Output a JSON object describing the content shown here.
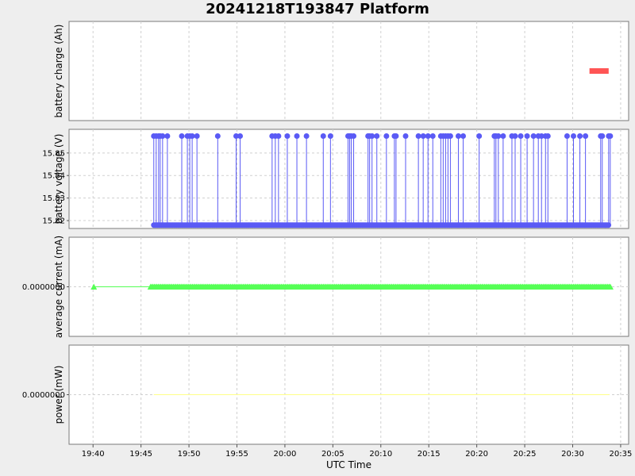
{
  "title": "20241218T193847 Platform",
  "x_axis": {
    "label": "UTC Time",
    "ticks": [
      "19:40",
      "19:45",
      "19:50",
      "19:55",
      "20:00",
      "20:05",
      "20:10",
      "20:15",
      "20:20",
      "20:25",
      "20:30",
      "20:35"
    ],
    "range": [
      "19:37:30",
      "20:35:50"
    ]
  },
  "chart_data": [
    {
      "type": "line",
      "ylabel": "battery charge (Ah)",
      "yticks": [],
      "series": [
        {
          "color": "#ff5555",
          "x": [
            "20:31:45",
            "20:33:45"
          ],
          "y": [
            0.5,
            0.5
          ]
        }
      ],
      "grid": true
    },
    {
      "type": "line",
      "ylabel": "battery voltage (V)",
      "yticks": [
        "15.82",
        "15.83",
        "15.84",
        "15.85"
      ],
      "ylim": [
        15.8165,
        15.8605
      ],
      "low": 15.818,
      "high": 15.8575,
      "x_start": "19:46:20",
      "x_end": "20:33:50",
      "spike_times": [
        "19:46:20",
        "19:46:35",
        "19:46:50",
        "19:47:00",
        "19:47:15",
        "19:47:45",
        "19:49:15",
        "19:49:50",
        "19:50:05",
        "19:50:20",
        "19:50:50",
        "19:53:00",
        "19:54:55",
        "19:55:20",
        "19:58:40",
        "19:59:00",
        "19:59:20",
        "20:00:15",
        "20:01:15",
        "20:02:15",
        "20:04:00",
        "20:04:45",
        "20:06:35",
        "20:06:45",
        "20:06:55",
        "20:07:10",
        "20:08:40",
        "20:08:50",
        "20:09:05",
        "20:09:35",
        "20:10:35",
        "20:11:25",
        "20:11:35",
        "20:12:35",
        "20:13:55",
        "20:14:25",
        "20:14:55",
        "20:15:25",
        "20:16:15",
        "20:16:30",
        "20:16:45",
        "20:17:00",
        "20:17:15",
        "20:18:05",
        "20:18:35",
        "20:20:15",
        "20:21:50",
        "20:22:00",
        "20:22:15",
        "20:22:45",
        "20:23:40",
        "20:24:00",
        "20:24:35",
        "20:25:15",
        "20:25:55",
        "20:26:25",
        "20:26:45",
        "20:27:10",
        "20:27:25",
        "20:29:25",
        "20:30:05",
        "20:30:45",
        "20:31:20",
        "20:32:55",
        "20:33:05",
        "20:33:45",
        "20:33:55"
      ],
      "color": "#5a5af5",
      "grid": true
    },
    {
      "type": "line",
      "ylabel": "average current (mA)",
      "yticks": [
        "0.0000000"
      ],
      "ylim": [
        -1,
        1
      ],
      "value": 0,
      "first_point": "19:40:05",
      "x_start": "19:46:00",
      "x_end": "20:34:00",
      "color": "#55ff55",
      "grid": true
    },
    {
      "type": "line",
      "ylabel": "power (mW)",
      "yticks": [
        "0.0000000"
      ],
      "ylim": [
        -1,
        1
      ],
      "value": 0,
      "x_start": "19:46:20",
      "x_end": "20:33:50",
      "color": "#ffff88",
      "grid": true
    }
  ]
}
